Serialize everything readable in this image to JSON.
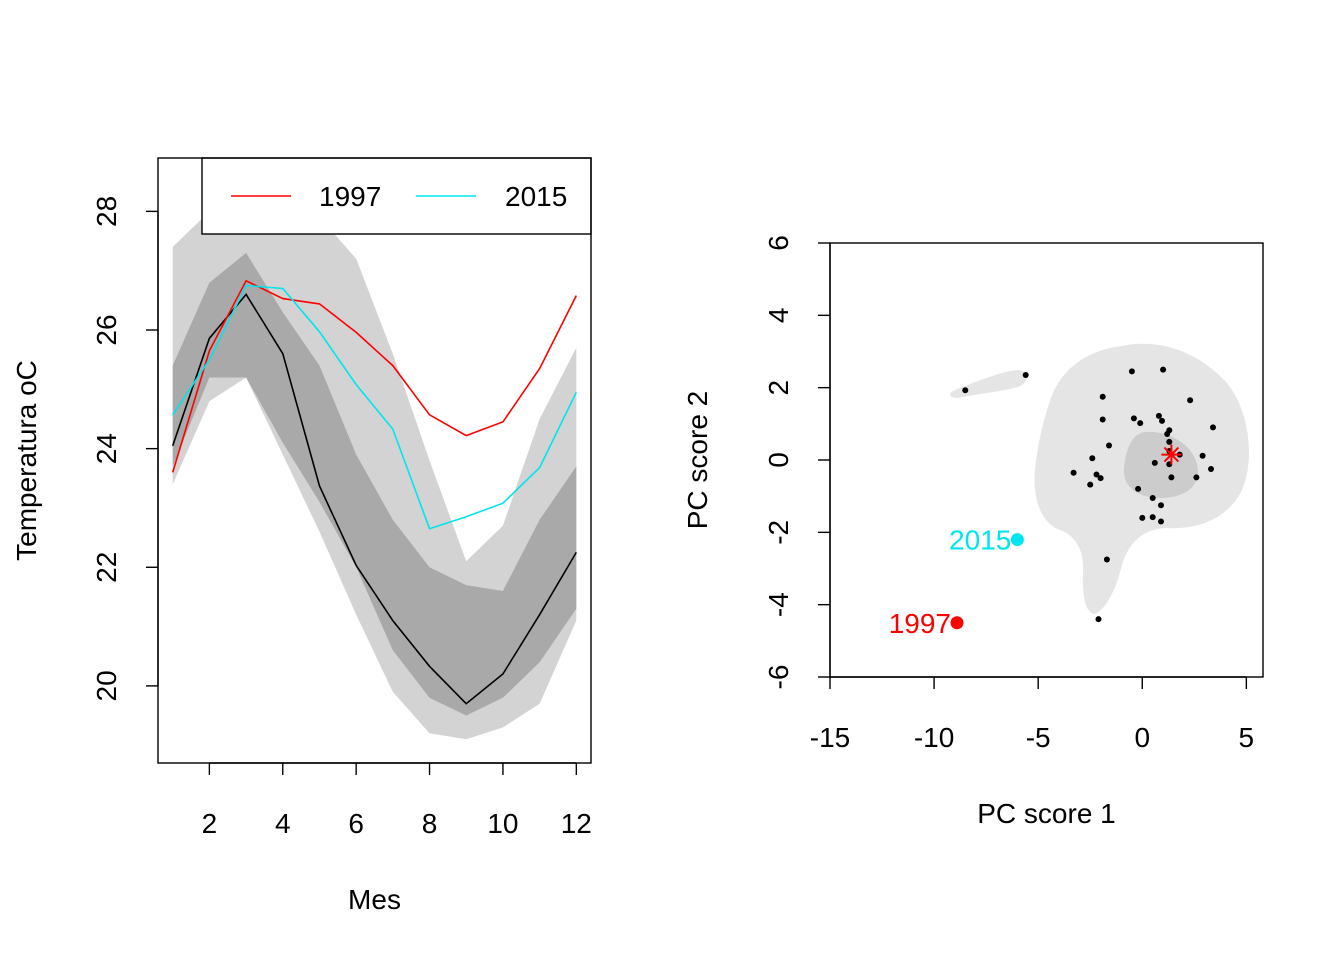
{
  "chart_data": [
    {
      "type": "line",
      "xlabel": "Mes",
      "ylabel": "Temperatura oC",
      "xlim": [
        0.6,
        12.4
      ],
      "ylim": [
        18.7,
        28.9
      ],
      "x_ticks": [
        2,
        4,
        6,
        8,
        10,
        12
      ],
      "y_ticks": [
        20,
        22,
        24,
        26,
        28
      ],
      "legend_position": "top-right",
      "x": [
        1,
        2,
        3,
        4,
        5,
        6,
        7,
        8,
        9,
        10,
        11,
        12
      ],
      "outer_band": {
        "color": "#d3d3d3",
        "upper": [
          27.4,
          28.0,
          28.3,
          28.0,
          27.9,
          27.2,
          25.6,
          23.8,
          22.1,
          22.7,
          24.5,
          25.7
        ],
        "lower": [
          23.4,
          24.8,
          25.2,
          23.9,
          22.6,
          21.2,
          19.9,
          19.2,
          19.1,
          19.3,
          19.7,
          21.1
        ]
      },
      "inner_band": {
        "color": "#a9a9a9",
        "upper": [
          25.4,
          26.8,
          27.3,
          26.3,
          25.4,
          23.9,
          22.8,
          22.0,
          21.7,
          21.6,
          22.8,
          23.7
        ],
        "lower": [
          23.7,
          25.2,
          25.2,
          24.1,
          23.1,
          22.0,
          20.6,
          19.8,
          19.5,
          19.8,
          20.4,
          21.3
        ]
      },
      "series": [
        {
          "name": "",
          "color": "#000000",
          "values": [
            24.05,
            25.86,
            26.6,
            25.6,
            23.37,
            22.03,
            21.1,
            20.33,
            19.7,
            20.2,
            21.2,
            22.25
          ]
        },
        {
          "name": "1997",
          "color": "#ff0000",
          "values": [
            23.6,
            25.65,
            26.83,
            26.53,
            26.44,
            25.96,
            25.4,
            24.57,
            24.22,
            24.45,
            25.35,
            26.58
          ]
        },
        {
          "name": "2015",
          "color": "#00e5ee",
          "values": [
            24.57,
            25.5,
            26.75,
            26.7,
            25.97,
            25.08,
            24.33,
            22.65,
            22.85,
            23.08,
            23.68,
            24.95
          ]
        }
      ]
    },
    {
      "type": "scatter",
      "xlabel": "PC score 1",
      "ylabel": "PC score 2",
      "xlim": [
        -15.0,
        5.8
      ],
      "ylim": [
        -6.0,
        6.0
      ],
      "x_ticks": [
        -15,
        -10,
        -5,
        0,
        5
      ],
      "y_ticks": [
        -6,
        -4,
        -2,
        0,
        2,
        4,
        6
      ],
      "contour_colors": [
        "#e5e5e5",
        "#cccccc"
      ],
      "mode_point": {
        "x": 1.4,
        "y": 0.15,
        "color": "#ff0000"
      },
      "labeled_points": [
        {
          "label": "2015",
          "x": -6.0,
          "y": -2.2,
          "color": "#00e5ee"
        },
        {
          "label": "1997",
          "x": -8.9,
          "y": -4.5,
          "color": "#ff0000"
        }
      ],
      "points": [
        {
          "x": -8.5,
          "y": 1.93
        },
        {
          "x": -5.6,
          "y": 2.35
        },
        {
          "x": -0.5,
          "y": 2.45
        },
        {
          "x": 1.0,
          "y": 2.5
        },
        {
          "x": -1.9,
          "y": 1.75
        },
        {
          "x": 2.3,
          "y": 1.65
        },
        {
          "x": -1.9,
          "y": 1.12
        },
        {
          "x": -0.4,
          "y": 1.15
        },
        {
          "x": -0.1,
          "y": 1.02
        },
        {
          "x": 0.8,
          "y": 1.22
        },
        {
          "x": 0.95,
          "y": 1.08
        },
        {
          "x": 1.3,
          "y": 0.82
        },
        {
          "x": 1.2,
          "y": 0.72
        },
        {
          "x": 3.4,
          "y": 0.9
        },
        {
          "x": -1.6,
          "y": 0.4
        },
        {
          "x": 1.3,
          "y": 0.5
        },
        {
          "x": 1.3,
          "y": 0.25
        },
        {
          "x": 1.8,
          "y": 0.15
        },
        {
          "x": 2.9,
          "y": 0.12
        },
        {
          "x": -2.4,
          "y": 0.05
        },
        {
          "x": 0.6,
          "y": -0.08
        },
        {
          "x": 1.3,
          "y": -0.12
        },
        {
          "x": 3.3,
          "y": -0.25
        },
        {
          "x": -3.3,
          "y": -0.35
        },
        {
          "x": -2.2,
          "y": -0.4
        },
        {
          "x": -2.0,
          "y": -0.5
        },
        {
          "x": 1.4,
          "y": -0.48
        },
        {
          "x": 2.6,
          "y": -0.48
        },
        {
          "x": -2.5,
          "y": -0.68
        },
        {
          "x": -0.2,
          "y": -0.8
        },
        {
          "x": 0.5,
          "y": -1.05
        },
        {
          "x": 0.9,
          "y": -1.25
        },
        {
          "x": 0.0,
          "y": -1.6
        },
        {
          "x": 0.5,
          "y": -1.58
        },
        {
          "x": 0.9,
          "y": -1.7
        },
        {
          "x": -1.7,
          "y": -2.75
        },
        {
          "x": -2.1,
          "y": -4.4
        }
      ]
    }
  ]
}
